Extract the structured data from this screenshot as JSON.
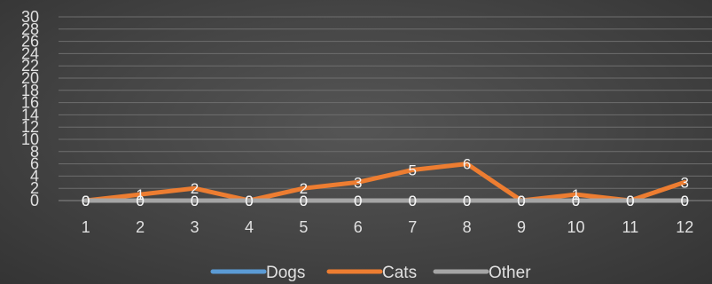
{
  "chart_data": {
    "type": "line",
    "categories": [
      "1",
      "2",
      "3",
      "4",
      "5",
      "6",
      "7",
      "8",
      "9",
      "10",
      "11",
      "12"
    ],
    "ylim": [
      0,
      30
    ],
    "y_ticks": [
      0,
      2,
      4,
      6,
      8,
      10,
      12,
      14,
      16,
      18,
      20,
      22,
      24,
      26,
      28,
      30
    ],
    "grid": true,
    "legend_position": "bottom",
    "data_labels": true,
    "series": [
      {
        "name": "Dogs",
        "color": "#5b9bd5",
        "values": [
          0,
          0,
          0,
          0,
          0,
          0,
          0,
          0,
          0,
          0,
          0,
          0
        ]
      },
      {
        "name": "Cats",
        "color": "#ed7d31",
        "values": [
          0,
          1,
          2,
          0,
          2,
          3,
          5,
          6,
          0,
          1,
          0,
          3
        ]
      },
      {
        "name": "Other",
        "color": "#a5a5a5",
        "values": [
          0,
          0,
          0,
          0,
          0,
          0,
          0,
          0,
          0,
          0,
          0,
          0
        ]
      }
    ]
  }
}
